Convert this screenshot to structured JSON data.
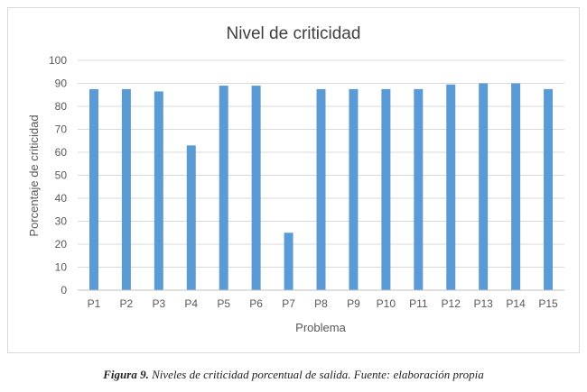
{
  "chart_data": {
    "type": "bar",
    "title": "Nivel de criticidad",
    "xlabel": "Problema",
    "ylabel": "Porcentaje de criticidad",
    "ylim": [
      0,
      100
    ],
    "yticks": [
      0,
      10,
      20,
      30,
      40,
      50,
      60,
      70,
      80,
      90,
      100
    ],
    "grid": true,
    "legend": "none",
    "categories": [
      "P1",
      "P2",
      "P3",
      "P4",
      "P5",
      "P6",
      "P7",
      "P8",
      "P9",
      "P10",
      "P11",
      "P12",
      "P13",
      "P14",
      "P15"
    ],
    "values": [
      87.5,
      87.5,
      86.5,
      63,
      89,
      89,
      25,
      87.5,
      87.5,
      87.5,
      87.5,
      89.5,
      90,
      90,
      87.5
    ],
    "bar_color": "#5b9bd5"
  },
  "caption": {
    "label": "Figura 9.",
    "text": " Niveles de criticidad porcentual de salida. Fuente: elaboración propia"
  }
}
